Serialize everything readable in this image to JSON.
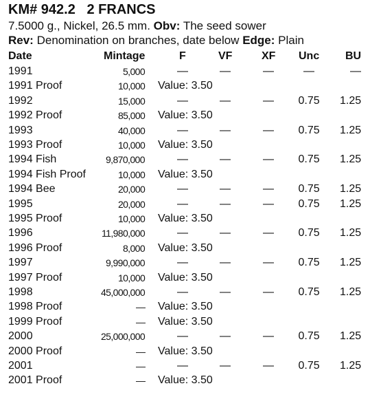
{
  "header": {
    "title": "KM# 942.2   2 FRANCS",
    "line1": {
      "text": "7.5000 g., Nickel, 26.5 mm.",
      "obv_label": "Obv:",
      "obv": "The seed sower"
    },
    "line2": {
      "rev_label": "Rev:",
      "rev": "Denomination on branches, date below",
      "edge_label": "Edge:",
      "edge": "Plain"
    }
  },
  "table": {
    "columns": {
      "date": "Date",
      "mintage": "Mintage",
      "f": "F",
      "vf": "VF",
      "xf": "XF",
      "unc": "Unc",
      "bu": "BU"
    },
    "rows": [
      {
        "date": "1991",
        "mintage": "5,000",
        "f": "—",
        "vf": "—",
        "xf": "—",
        "unc": "—",
        "bu": "—"
      },
      {
        "date": "1991 Proof",
        "mintage": "10,000",
        "value": "Value: 3.50"
      },
      {
        "date": "1992",
        "mintage": "15,000",
        "f": "—",
        "vf": "—",
        "xf": "—",
        "unc": "0.75",
        "bu": "1.25"
      },
      {
        "date": "1992 Proof",
        "mintage": "85,000",
        "value": "Value: 3.50"
      },
      {
        "date": "1993",
        "mintage": "40,000",
        "f": "—",
        "vf": "—",
        "xf": "—",
        "unc": "0.75",
        "bu": "1.25"
      },
      {
        "date": "1993 Proof",
        "mintage": "10,000",
        "value": "Value: 3.50"
      },
      {
        "date": "1994 Fish",
        "mintage": "9,870,000",
        "f": "—",
        "vf": "—",
        "xf": "—",
        "unc": "0.75",
        "bu": "1.25"
      },
      {
        "date": "1994 Fish Proof",
        "mintage": "10,000",
        "value": "Value: 3.50"
      },
      {
        "date": "1994 Bee",
        "mintage": "20,000",
        "f": "—",
        "vf": "—",
        "xf": "—",
        "unc": "0.75",
        "bu": "1.25"
      },
      {
        "date": "1995",
        "mintage": "20,000",
        "f": "—",
        "vf": "—",
        "xf": "—",
        "unc": "0.75",
        "bu": "1.25"
      },
      {
        "date": "1995 Proof",
        "mintage": "10,000",
        "value": "Value: 3.50"
      },
      {
        "date": "1996",
        "mintage": "11,980,000",
        "f": "—",
        "vf": "—",
        "xf": "—",
        "unc": "0.75",
        "bu": "1.25"
      },
      {
        "date": "1996 Proof",
        "mintage": "8,000",
        "value": "Value: 3.50"
      },
      {
        "date": "1997",
        "mintage": "9,990,000",
        "f": "—",
        "vf": "—",
        "xf": "—",
        "unc": "0.75",
        "bu": "1.25"
      },
      {
        "date": "1997 Proof",
        "mintage": "10,000",
        "value": "Value: 3.50"
      },
      {
        "date": "1998",
        "mintage": "45,000,000",
        "f": "—",
        "vf": "—",
        "xf": "—",
        "unc": "0.75",
        "bu": "1.25"
      },
      {
        "date": "1998 Proof",
        "mintage": "—",
        "value": "Value: 3.50"
      },
      {
        "date": "1999 Proof",
        "mintage": "—",
        "value": "Value: 3.50"
      },
      {
        "date": "2000",
        "mintage": "25,000,000",
        "f": "—",
        "vf": "—",
        "xf": "—",
        "unc": "0.75",
        "bu": "1.25"
      },
      {
        "date": "2000 Proof",
        "mintage": "—",
        "value": "Value: 3.50"
      },
      {
        "date": "2001",
        "mintage": "—",
        "f": "—",
        "vf": "—",
        "xf": "—",
        "unc": "0.75",
        "bu": "1.25"
      },
      {
        "date": "2001 Proof",
        "mintage": "—",
        "value": "Value: 3.50"
      }
    ]
  }
}
